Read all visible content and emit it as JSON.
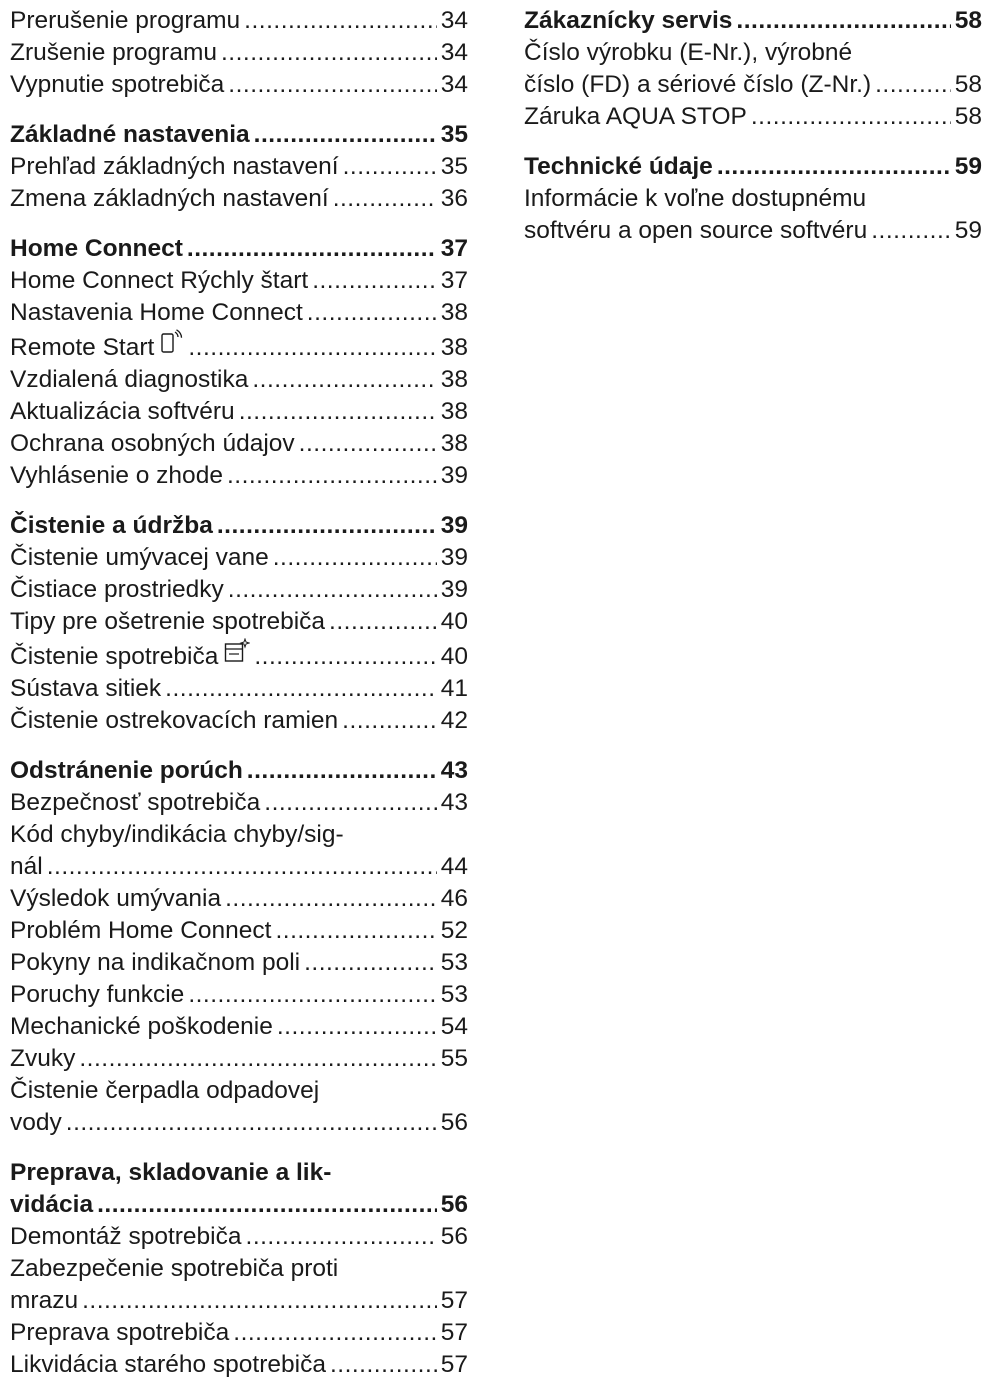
{
  "left_sections": [
    {
      "heading": null,
      "items": [
        {
          "label": "Prerušenie programu",
          "page": "34"
        },
        {
          "label": "Zrušenie programu",
          "page": "34"
        },
        {
          "label": "Vypnutie spotrebiča",
          "page": "34"
        }
      ]
    },
    {
      "heading": {
        "label": "Základné nastavenia",
        "page": "35"
      },
      "items": [
        {
          "label": "Prehľad základných nastavení",
          "page": "35"
        },
        {
          "label": "Zmena základných nastavení",
          "page": "36"
        }
      ]
    },
    {
      "heading": {
        "label": "Home Connect",
        "page": "37"
      },
      "items": [
        {
          "label": "Home Connect Rýchly štart",
          "page": "37"
        },
        {
          "label": "Nastavenia Home Connect",
          "page": "38"
        },
        {
          "label": "Remote Start",
          "page": "38",
          "icon": "remote-start-icon"
        },
        {
          "label": "Vzdialená diagnostika",
          "page": "38"
        },
        {
          "label": "Aktualizácia softvéru",
          "page": "38"
        },
        {
          "label": "Ochrana osobných údajov",
          "page": "38"
        },
        {
          "label": "Vyhlásenie o zhode",
          "page": "39"
        }
      ]
    },
    {
      "heading": {
        "label": "Čistenie a údržba",
        "page": "39"
      },
      "items": [
        {
          "label": "Čistenie umývacej vane",
          "page": "39"
        },
        {
          "label": "Čistiace prostriedky",
          "page": "39"
        },
        {
          "label": "Tipy pre ošetrenie spotrebiča",
          "page": "40"
        },
        {
          "label": "Čistenie spotrebiča",
          "page": "40",
          "icon": "machine-care-icon"
        },
        {
          "label": "Sústava sitiek",
          "page": "41"
        },
        {
          "label": "Čistenie ostrekovacích ramien",
          "page": "42"
        }
      ]
    },
    {
      "heading": {
        "label": "Odstránenie porúch",
        "page": "43"
      },
      "items": [
        {
          "label": "Bezpečnosť spotrebiča",
          "page": "43"
        },
        {
          "pre": "Kód chyby/indikácia chyby/sig-",
          "label": "nál",
          "page": "44"
        },
        {
          "label": "Výsledok umývania",
          "page": "46"
        },
        {
          "label": "Problém Home Connect",
          "page": "52"
        },
        {
          "label": "Pokyny na indikačnom poli",
          "page": "53"
        },
        {
          "label": "Poruchy funkcie",
          "page": "53"
        },
        {
          "label": "Mechanické poškodenie",
          "page": "54"
        },
        {
          "label": "Zvuky",
          "page": "55"
        },
        {
          "pre": "Čistenie čerpadla odpadovej",
          "label": "vody",
          "page": "56"
        }
      ]
    },
    {
      "heading": {
        "pre": "Preprava, skladovanie a lik-",
        "label": "vidácia",
        "page": "56"
      },
      "items": [
        {
          "label": "Demontáž spotrebiča",
          "page": "56"
        },
        {
          "pre": "Zabezpečenie spotrebiča proti",
          "label": "mrazu",
          "page": "57"
        },
        {
          "label": "Preprava spotrebiča",
          "page": "57"
        },
        {
          "label": "Likvidácia starého spotrebiča",
          "page": "57"
        }
      ]
    }
  ],
  "right_sections": [
    {
      "heading": {
        "label": "Zákaznícky servis",
        "page": "58"
      },
      "items": [
        {
          "pre": "Číslo výrobku (E-Nr.), výrobné",
          "label": "číslo (FD) a sériové číslo (Z-Nr.)",
          "page": "58"
        },
        {
          "label": "Záruka AQUA STOP",
          "page": "58"
        }
      ]
    },
    {
      "heading": {
        "label": "Technické údaje",
        "page": "59"
      },
      "items": [
        {
          "pre": "Informácie k voľne dostupnému",
          "label": "softvéru a open source softvéru",
          "page": "59"
        }
      ]
    }
  ]
}
